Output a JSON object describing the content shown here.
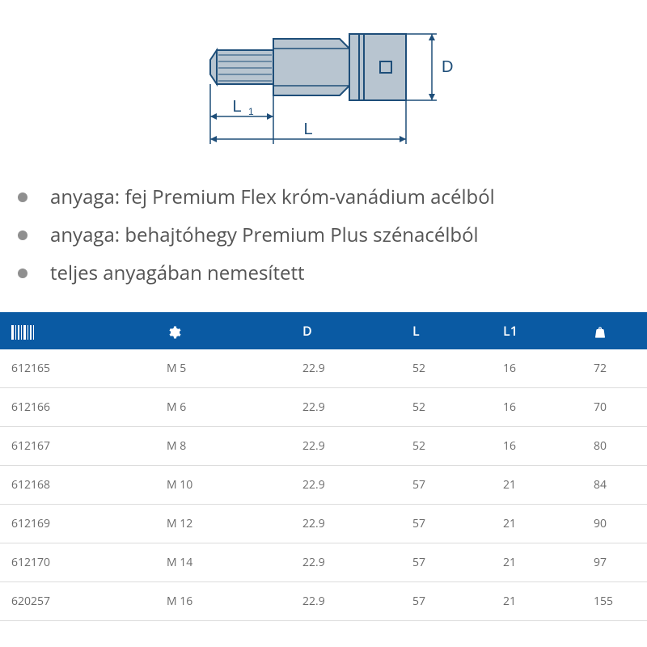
{
  "diagram": {
    "stroke": "#1e4e79",
    "fill": "#b8c5d0",
    "labels": {
      "L": "L",
      "L1": "L1",
      "D": "D",
      "L1_sub": "1"
    },
    "label_fontsize": 20
  },
  "bullets": [
    "anyaga: fej Premium Flex króm-vanádium acélból",
    "anyaga: behajtóhegy Premium Plus szénacélból",
    "teljes anyagában nemesített"
  ],
  "table": {
    "header_bg": "#0a5aa3",
    "header_fg": "#ffffff",
    "columns": [
      {
        "kind": "icon",
        "icon": "barcode"
      },
      {
        "kind": "icon",
        "icon": "gear"
      },
      {
        "kind": "text",
        "label": "D"
      },
      {
        "kind": "text",
        "label": "L"
      },
      {
        "kind": "text",
        "label": "L1"
      },
      {
        "kind": "icon",
        "icon": "weight"
      }
    ],
    "col_widths_pct": [
      24,
      21,
      17,
      14,
      14,
      10
    ],
    "rows": [
      [
        "612165",
        "M 5",
        "22.9",
        "52",
        "16",
        "72"
      ],
      [
        "612166",
        "M 6",
        "22.9",
        "52",
        "16",
        "70"
      ],
      [
        "612167",
        "M 8",
        "22.9",
        "52",
        "16",
        "80"
      ],
      [
        "612168",
        "M 10",
        "22.9",
        "57",
        "21",
        "84"
      ],
      [
        "612169",
        "M 12",
        "22.9",
        "57",
        "21",
        "90"
      ],
      [
        "612170",
        "M 14",
        "22.9",
        "57",
        "21",
        "97"
      ],
      [
        "620257",
        "M 16",
        "22.9",
        "57",
        "21",
        "155"
      ]
    ]
  }
}
